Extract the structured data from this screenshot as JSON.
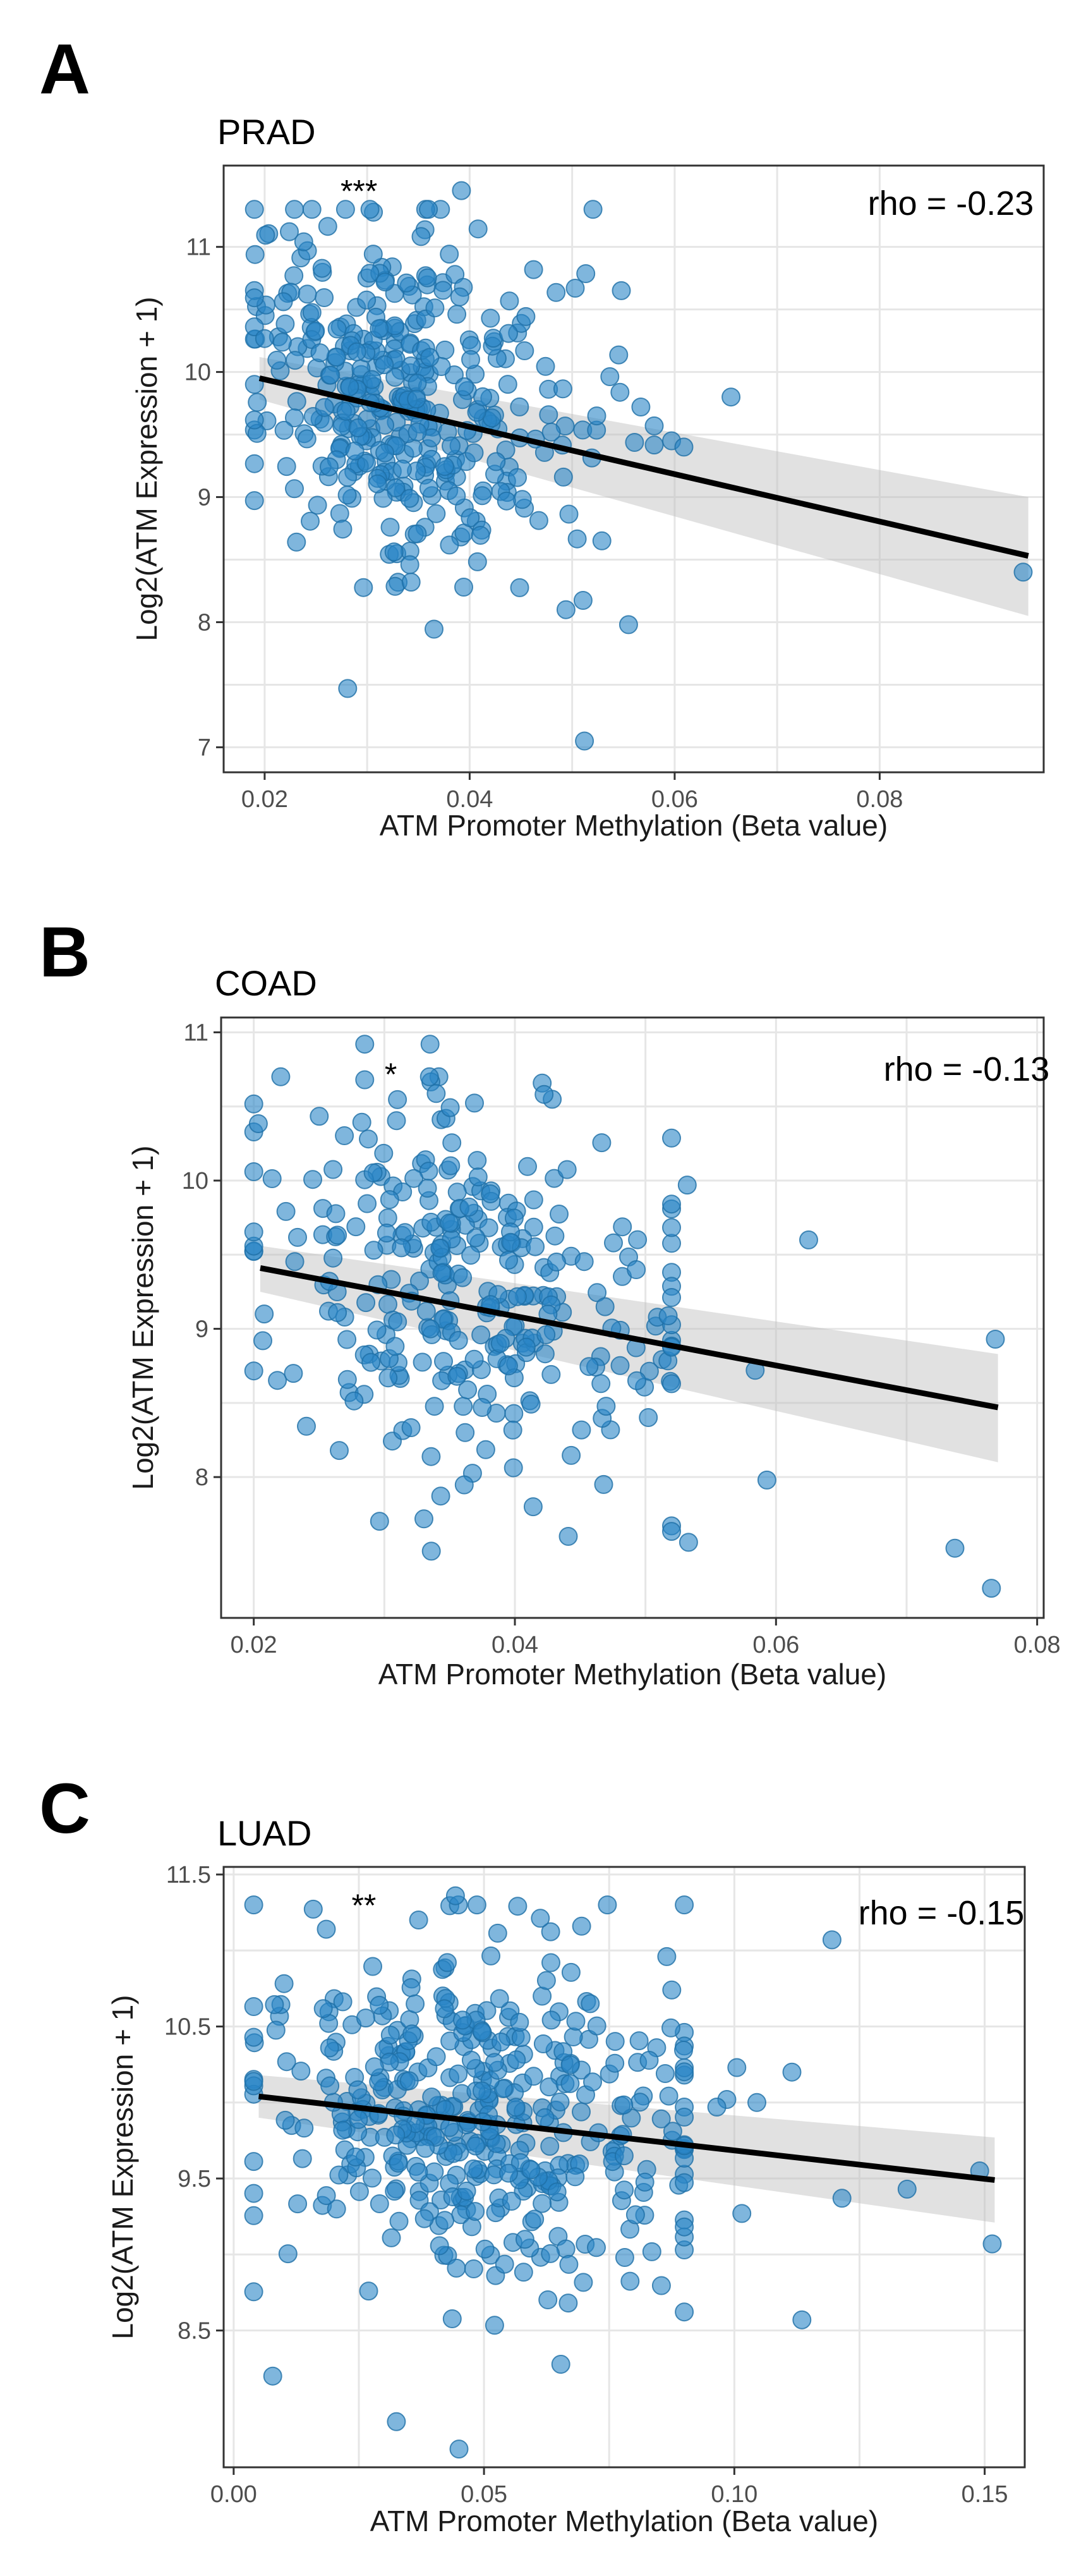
{
  "chart_data": [
    {
      "panel": "A",
      "title": "PRAD",
      "type": "scatter",
      "xlabel": "ATM Promoter Methylation (Beta value)",
      "ylabel": "Log2(ATM Expression + 1)",
      "xlim": [
        0.016,
        0.096
      ],
      "ylim": [
        6.8,
        11.65
      ],
      "xticks": [
        0.02,
        0.04,
        0.06,
        0.08
      ],
      "xtick_labels": [
        "0.02",
        "0.04",
        "0.06",
        "0.08"
      ],
      "yticks": [
        7,
        8,
        9,
        10,
        11
      ],
      "ytick_labels": [
        "7",
        "8",
        "9",
        "10",
        "11"
      ],
      "rho_label": "rho = -0.23",
      "significance": "***",
      "significance_pos": [
        0.0292,
        11.45
      ],
      "grid": true,
      "fit": {
        "x1": 0.0195,
        "y1": 9.95,
        "x2": 0.0945,
        "y2": 8.53,
        "ci_lo": [
          9.78,
          8.05
        ],
        "ci_hi": [
          10.12,
          9.0
        ]
      },
      "point_cloud": {
        "n": 380,
        "x_mode": 0.032,
        "x_spread": 0.0058,
        "x_min": 0.019,
        "x_max": 0.058,
        "y_mean": 9.7,
        "y_sd": 0.64,
        "y_min": 7.4,
        "y_max": 11.3,
        "seed": 11
      },
      "outliers": [
        [
          0.0392,
          11.45
        ],
        [
          0.0512,
          7.05
        ],
        [
          0.0655,
          9.8
        ],
        [
          0.094,
          8.4
        ],
        [
          0.0597,
          9.45
        ],
        [
          0.0567,
          9.72
        ],
        [
          0.0555,
          7.98
        ],
        [
          0.0494,
          8.1
        ],
        [
          0.0548,
          10.65
        ],
        [
          0.0503,
          10.67
        ],
        [
          0.0529,
          8.65
        ],
        [
          0.0281,
          7.47
        ],
        [
          0.0609,
          9.4
        ]
      ]
    },
    {
      "panel": "B",
      "title": "COAD",
      "type": "scatter",
      "xlabel": "ATM Promoter Methylation (Beta value)",
      "ylabel": "Log2(ATM Expression + 1)",
      "xlim": [
        0.0175,
        0.0805
      ],
      "ylim": [
        7.05,
        11.1
      ],
      "xticks": [
        0.02,
        0.04,
        0.06,
        0.08
      ],
      "xtick_labels": [
        "0.02",
        "0.04",
        "0.06",
        "0.08"
      ],
      "yticks": [
        8,
        9,
        10,
        11
      ],
      "ytick_labels": [
        "8",
        "9",
        "10",
        "11"
      ],
      "rho_label": "rho = -0.13",
      "significance": "*",
      "significance_pos": [
        0.0305,
        10.72
      ],
      "grid": true,
      "fit": {
        "x1": 0.0205,
        "y1": 9.41,
        "x2": 0.077,
        "y2": 8.47,
        "ci_lo": [
          9.25,
          8.1
        ],
        "ci_hi": [
          9.56,
          8.83
        ]
      },
      "point_cloud": {
        "n": 300,
        "x_mode": 0.034,
        "x_spread": 0.0062,
        "x_min": 0.02,
        "x_max": 0.052,
        "y_mean": 9.15,
        "y_sd": 0.6,
        "y_min": 7.6,
        "y_max": 10.7,
        "seed": 23
      },
      "outliers": [
        [
          0.0285,
          10.92
        ],
        [
          0.0335,
          10.92
        ],
        [
          0.0285,
          10.68
        ],
        [
          0.0765,
          7.25
        ],
        [
          0.0737,
          7.52
        ],
        [
          0.0533,
          7.56
        ],
        [
          0.0593,
          7.98
        ],
        [
          0.0625,
          9.6
        ],
        [
          0.0532,
          9.97
        ],
        [
          0.0768,
          8.93
        ],
        [
          0.0584,
          8.72
        ],
        [
          0.0208,
          9.1
        ],
        [
          0.0336,
          7.5
        ],
        [
          0.0414,
          7.8
        ],
        [
          0.0468,
          7.95
        ]
      ]
    },
    {
      "panel": "C",
      "title": "LUAD",
      "type": "scatter",
      "xlabel": "ATM Promoter Methylation (Beta value)",
      "ylabel": "Log2(ATM Expression + 1)",
      "xlim": [
        -0.002,
        0.158
      ],
      "ylim": [
        7.6,
        11.55
      ],
      "xticks": [
        0.0,
        0.05,
        0.1,
        0.15
      ],
      "xtick_labels": [
        "0.00",
        "0.05",
        "0.10",
        "0.15"
      ],
      "yticks": [
        8.5,
        9.5,
        10.5,
        11.5
      ],
      "ytick_labels": [
        "8.5",
        "9.5",
        "10.5",
        "11.5"
      ],
      "rho_label": "rho = -0.15",
      "significance": "**",
      "significance_pos": [
        0.026,
        11.3
      ],
      "grid": true,
      "fit": {
        "x1": 0.005,
        "y1": 10.04,
        "x2": 0.152,
        "y2": 9.49,
        "ci_lo": [
          9.9,
          9.21
        ],
        "ci_hi": [
          10.18,
          9.77
        ]
      },
      "point_cloud": {
        "n": 420,
        "x_mode": 0.045,
        "x_spread": 0.018,
        "x_min": 0.004,
        "x_max": 0.09,
        "y_mean": 9.95,
        "y_sd": 0.55,
        "y_min": 8.2,
        "y_max": 11.3,
        "seed": 37
      },
      "outliers": [
        [
          0.0443,
          11.36
        ],
        [
          0.0325,
          7.9
        ],
        [
          0.045,
          7.72
        ],
        [
          0.0078,
          8.2
        ],
        [
          0.1195,
          11.07
        ],
        [
          0.1135,
          8.57
        ],
        [
          0.1515,
          9.07
        ],
        [
          0.149,
          9.55
        ],
        [
          0.1345,
          9.43
        ],
        [
          0.1215,
          9.37
        ],
        [
          0.1015,
          9.27
        ],
        [
          0.1005,
          10.23
        ],
        [
          0.1115,
          10.2
        ],
        [
          0.1045,
          10.0
        ],
        [
          0.0985,
          10.02
        ],
        [
          0.0965,
          9.97
        ],
        [
          0.0695,
          11.16
        ],
        [
          0.0185,
          11.14
        ],
        [
          0.0875,
          10.74
        ],
        [
          0.0865,
          10.96
        ]
      ]
    }
  ]
}
